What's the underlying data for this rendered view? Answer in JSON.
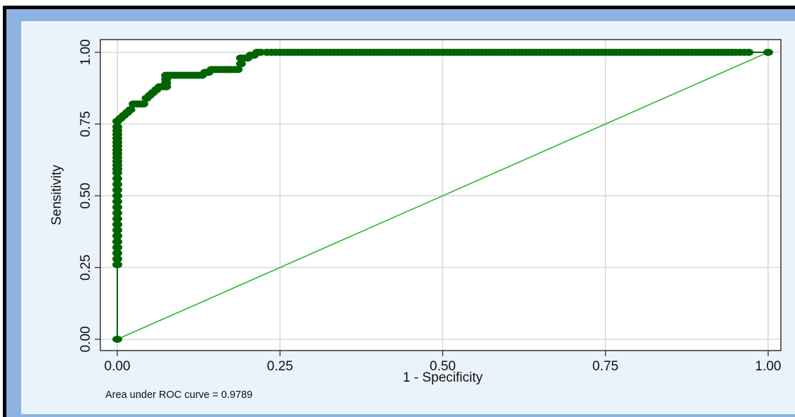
{
  "chart_data": {
    "type": "line",
    "xlabel": "1 - Specificity",
    "ylabel": "Sensitivity",
    "xlim": [
      0,
      1
    ],
    "ylim": [
      0,
      1
    ],
    "x_ticks": [
      "0.00",
      "0.25",
      "0.50",
      "0.75",
      "1.00"
    ],
    "y_ticks": [
      "0.00",
      "0.25",
      "0.50",
      "0.75",
      "1.00"
    ],
    "grid": true,
    "legend": "none",
    "annotation": "Area under ROC curve = 0.9789",
    "colors": {
      "roc": "#006400",
      "reference": "#2db52d",
      "grid": "#d9d9d9"
    },
    "series": [
      {
        "role": "roc",
        "x": [
          0,
          0,
          0,
          0,
          0,
          0,
          0,
          0,
          0,
          0,
          0,
          0,
          0,
          0,
          0,
          0,
          0,
          0,
          0,
          0,
          0,
          0,
          0,
          0.005,
          0.01,
          0.015,
          0.02,
          0.025,
          0.03,
          0.035,
          0.04,
          0.045,
          0.05,
          0.055,
          0.06,
          0.065,
          0.07,
          0.075,
          0.075,
          0.08,
          0.085,
          0.09,
          0.095,
          0.1,
          0.105,
          0.11,
          0.115,
          0.12,
          0.125,
          0.13,
          0.135,
          0.14,
          0.145,
          0.15,
          0.155,
          0.16,
          0.165,
          0.17,
          0.175,
          0.18,
          0.185,
          0.19,
          0.19,
          0.195,
          0.2,
          0.205,
          0.21,
          0.215,
          0.22,
          0.23,
          0.25,
          0.3,
          0.35,
          0.4,
          0.45,
          0.5,
          0.55,
          0.6,
          0.65,
          0.7,
          0.75,
          0.8,
          0.85,
          0.9,
          0.95,
          0.97,
          1.0
        ],
        "y": [
          0,
          0.26,
          0.28,
          0.3,
          0.32,
          0.34,
          0.36,
          0.38,
          0.4,
          0.42,
          0.44,
          0.46,
          0.48,
          0.5,
          0.52,
          0.54,
          0.56,
          0.58,
          0.62,
          0.66,
          0.7,
          0.74,
          0.76,
          0.77,
          0.78,
          0.79,
          0.8,
          0.82,
          0.82,
          0.82,
          0.82,
          0.84,
          0.85,
          0.86,
          0.87,
          0.88,
          0.88,
          0.88,
          0.92,
          0.92,
          0.92,
          0.92,
          0.92,
          0.92,
          0.92,
          0.92,
          0.92,
          0.92,
          0.92,
          0.92,
          0.93,
          0.93,
          0.94,
          0.94,
          0.94,
          0.94,
          0.94,
          0.94,
          0.94,
          0.94,
          0.94,
          0.96,
          0.98,
          0.98,
          0.98,
          0.99,
          0.99,
          1.0,
          1.0,
          1.0,
          1.0,
          1.0,
          1.0,
          1.0,
          1.0,
          1.0,
          1.0,
          1.0,
          1.0,
          1.0,
          1.0,
          1.0,
          1.0,
          1.0,
          1.0,
          1.0,
          1.0
        ]
      },
      {
        "role": "reference",
        "x": [
          0,
          1
        ],
        "y": [
          0,
          1
        ]
      }
    ]
  }
}
